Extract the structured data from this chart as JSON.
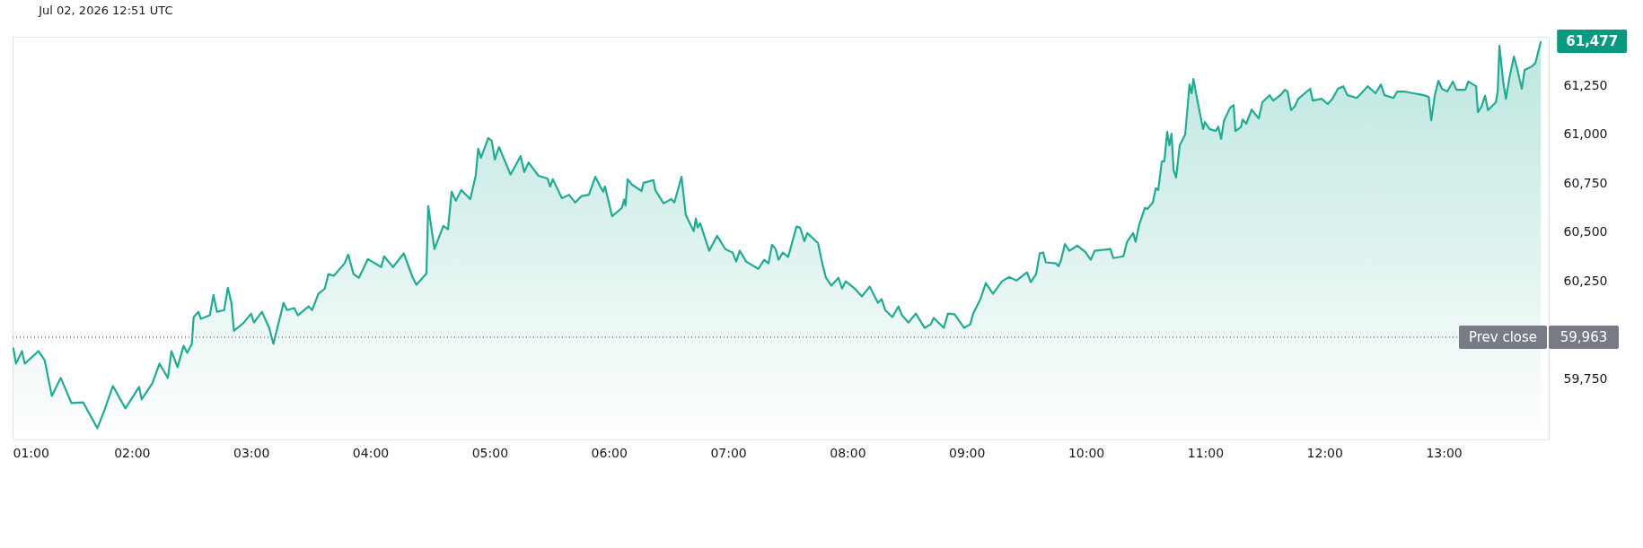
{
  "chart_data": {
    "type": "area",
    "title": "Jul 02, 2026 12:51 UTC",
    "x": [
      1.006,
      1.028,
      1.079,
      1.103,
      1.217,
      1.269,
      1.329,
      1.404,
      1.494,
      1.591,
      1.711,
      1.765,
      1.841,
      1.946,
      2.061,
      2.082,
      2.172,
      2.232,
      2.302,
      2.332,
      2.383,
      2.434,
      2.464,
      2.503,
      2.518,
      2.558,
      2.579,
      2.654,
      2.684,
      2.714,
      2.774,
      2.805,
      2.835,
      2.856,
      2.94,
      3.0,
      3.024,
      3.091,
      3.151,
      3.187,
      3.272,
      3.302,
      3.362,
      3.392,
      3.482,
      3.512,
      3.564,
      3.618,
      3.648,
      3.693,
      3.784,
      3.814,
      3.859,
      3.904,
      3.979,
      4.091,
      4.115,
      4.19,
      4.28,
      4.356,
      4.386,
      4.47,
      4.485,
      4.537,
      4.612,
      4.651,
      4.681,
      4.717,
      4.762,
      4.838,
      4.883,
      4.904,
      4.928,
      4.988,
      5.018,
      5.043,
      5.079,
      5.175,
      5.26,
      5.29,
      5.326,
      5.41,
      5.485,
      5.507,
      5.53,
      5.606,
      5.666,
      5.717,
      5.771,
      5.832,
      5.886,
      5.928,
      5.952,
      5.967,
      6.027,
      6.109,
      6.127,
      6.139,
      6.157,
      6.193,
      6.274,
      6.29,
      6.374,
      6.389,
      6.458,
      6.524,
      6.549,
      6.609,
      6.645,
      6.711,
      6.729,
      6.744,
      6.765,
      6.841,
      6.907,
      6.976,
      7.037,
      7.067,
      7.097,
      7.151,
      7.253,
      7.302,
      7.338,
      7.368,
      7.398,
      7.422,
      7.458,
      7.503,
      7.573,
      7.603,
      7.639,
      7.663,
      7.753,
      7.789,
      7.82,
      7.865,
      7.925,
      7.955,
      7.985,
      8.061,
      8.121,
      8.187,
      8.256,
      8.287,
      8.317,
      8.377,
      8.428,
      8.458,
      8.512,
      8.573,
      8.648,
      8.699,
      8.723,
      8.808,
      8.843,
      8.898,
      8.979,
      9.03,
      9.054,
      9.115,
      9.16,
      9.22,
      9.296,
      9.356,
      9.416,
      9.506,
      9.537,
      9.582,
      9.612,
      9.642,
      9.663,
      9.747,
      9.771,
      9.792,
      9.823,
      9.862,
      9.928,
      9.994,
      10.04,
      10.073,
      10.205,
      10.229,
      10.314,
      10.344,
      10.395,
      10.416,
      10.446,
      10.494,
      10.515,
      10.561,
      10.585,
      10.606,
      10.636,
      10.657,
      10.681,
      10.699,
      10.717,
      10.735,
      10.756,
      10.786,
      10.832,
      10.868,
      10.886,
      10.901,
      10.931,
      10.982,
      10.997,
      11.036,
      11.088,
      11.109,
      11.133,
      11.157,
      11.208,
      11.238,
      11.253,
      11.298,
      11.314,
      11.344,
      11.389,
      11.449,
      11.479,
      11.539,
      11.57,
      11.63,
      11.669,
      11.69,
      11.72,
      11.75,
      11.78,
      11.88,
      11.901,
      11.976,
      12.027,
      12.067,
      12.112,
      12.157,
      12.193,
      12.271,
      12.323,
      12.362,
      12.428,
      12.473,
      12.503,
      12.579,
      12.609,
      12.669,
      12.744,
      12.835,
      12.874,
      12.895,
      12.925,
      12.955,
      12.985,
      13.03,
      13.076,
      13.106,
      13.181,
      13.205,
      13.271,
      13.286,
      13.316,
      13.346,
      13.371,
      13.437,
      13.452,
      13.467,
      13.497,
      13.521,
      13.551,
      13.588,
      13.618,
      13.654,
      13.678,
      13.738,
      13.768,
      13.814
    ],
    "series": [
      {
        "color": "#22ab94",
        "values": [
          59910,
          59828,
          59892,
          59828,
          59892,
          59846,
          59663,
          59755,
          59626,
          59630,
          59498,
          59581,
          59714,
          59599,
          59709,
          59645,
          59727,
          59828,
          59755,
          59892,
          59810,
          59919,
          59883,
          59929,
          60066,
          60093,
          60057,
          60075,
          60179,
          60093,
          60102,
          60216,
          60139,
          59996,
          60038,
          60084,
          60038,
          60093,
          60011,
          59929,
          60139,
          60102,
          60112,
          60075,
          60121,
          60102,
          60185,
          60212,
          60286,
          60277,
          60341,
          60386,
          60286,
          60267,
          60363,
          60322,
          60377,
          60322,
          60392,
          60267,
          60231,
          60289,
          60634,
          60414,
          60533,
          60515,
          60707,
          60661,
          60716,
          60670,
          60789,
          60927,
          60881,
          60982,
          60967,
          60872,
          60936,
          60795,
          60890,
          60808,
          60857,
          60789,
          60775,
          60734,
          60771,
          60674,
          60692,
          60652,
          60685,
          60692,
          60784,
          60734,
          60707,
          60734,
          60582,
          60625,
          60667,
          60637,
          60771,
          60744,
          60711,
          60753,
          60767,
          60716,
          60648,
          60670,
          60652,
          60784,
          60588,
          60505,
          60570,
          60524,
          60546,
          60405,
          60482,
          60414,
          60396,
          60350,
          60405,
          60350,
          60313,
          60359,
          60341,
          60436,
          60414,
          60359,
          60396,
          60374,
          60529,
          60524,
          60454,
          60496,
          60445,
          60341,
          60267,
          60227,
          60267,
          60212,
          60249,
          60212,
          60172,
          60222,
          60139,
          60158,
          60102,
          60066,
          60121,
          60075,
          60038,
          60084,
          60011,
          60029,
          60062,
          60011,
          60084,
          60081,
          60011,
          60029,
          60084,
          60158,
          60240,
          60185,
          60249,
          60271,
          60253,
          60295,
          60245,
          60286,
          60392,
          60396,
          60346,
          60341,
          60326,
          60359,
          60440,
          60405,
          60432,
          60399,
          60359,
          60405,
          60414,
          60368,
          60377,
          60451,
          60496,
          60451,
          60538,
          60625,
          60619,
          60652,
          60725,
          60716,
          60863,
          60863,
          61013,
          60945,
          61004,
          60817,
          60780,
          60945,
          61000,
          61256,
          61211,
          61284,
          61183,
          61028,
          61064,
          61028,
          61018,
          61040,
          60978,
          61070,
          61137,
          61150,
          61018,
          61037,
          61077,
          61055,
          61128,
          61082,
          61165,
          61201,
          61174,
          61201,
          61229,
          61220,
          61125,
          61143,
          61183,
          61234,
          61174,
          61183,
          61156,
          61183,
          61234,
          61247,
          61201,
          61187,
          61220,
          61247,
          61211,
          61256,
          61201,
          61187,
          61220,
          61220,
          61211,
          61201,
          61192,
          61073,
          61201,
          61275,
          61234,
          61220,
          61271,
          61229,
          61229,
          61271,
          61247,
          61114,
          61143,
          61198,
          61125,
          61165,
          61220,
          61454,
          61275,
          61183,
          61293,
          61399,
          61330,
          61234,
          61330,
          61348,
          61366,
          61477
        ]
      }
    ],
    "xlim": [
      1,
      13.88
    ],
    "xticks": [
      {
        "value": 1,
        "label": "01:00"
      },
      {
        "value": 2,
        "label": "02:00"
      },
      {
        "value": 3,
        "label": "03:00"
      },
      {
        "value": 4,
        "label": "04:00"
      },
      {
        "value": 5,
        "label": "05:00"
      },
      {
        "value": 6,
        "label": "06:00"
      },
      {
        "value": 7,
        "label": "07:00"
      },
      {
        "value": 8,
        "label": "08:00"
      },
      {
        "value": 9,
        "label": "09:00"
      },
      {
        "value": 10,
        "label": "10:00"
      },
      {
        "value": 11,
        "label": "11:00"
      },
      {
        "value": 12,
        "label": "12:00"
      },
      {
        "value": 13,
        "label": "13:00"
      }
    ],
    "ylim": [
      59440,
      61500
    ],
    "yticks": [
      {
        "value": 59750,
        "label": "59,750"
      },
      {
        "value": 60250,
        "label": "60,250"
      },
      {
        "value": 60500,
        "label": "60,500"
      },
      {
        "value": 60750,
        "label": "60,750"
      },
      {
        "value": 61000,
        "label": "61,000"
      },
      {
        "value": 61250,
        "label": "61,250"
      }
    ],
    "grid": false,
    "ref_lines": [
      {
        "axis": "y",
        "value": 59963,
        "label": "Prev close",
        "color": "#787b86",
        "line_style": "dotted"
      }
    ],
    "annotations": [
      {
        "text": "61,477",
        "x": 13.814,
        "y": 61477
      },
      "59,963"
    ]
  }
}
